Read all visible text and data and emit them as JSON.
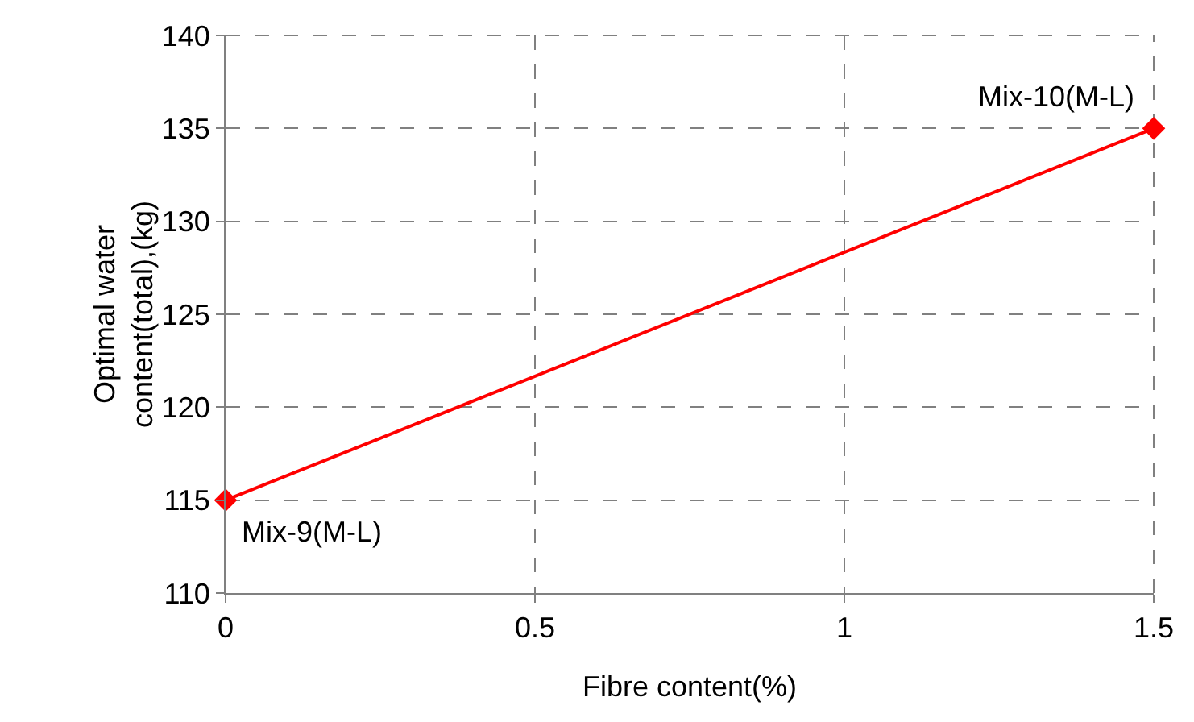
{
  "chart_data": {
    "type": "line",
    "xlabel": "Fibre content(%)",
    "ylabel": "Optimal water\ncontent(total),(kg)",
    "x": [
      0,
      1.5
    ],
    "series": [
      {
        "color": "#ff0000",
        "values": [
          115,
          135
        ]
      }
    ],
    "xlim": [
      0,
      1.5
    ],
    "xticks": [
      0,
      0.5,
      1,
      1.5
    ],
    "ylim": [
      110,
      140
    ],
    "yticks": [
      110,
      115,
      120,
      125,
      130,
      135,
      140
    ],
    "grid": true,
    "marker": "diamond",
    "line_style": "solid",
    "annotations": [
      {
        "text": "Mix-9(M-L)",
        "x": 0,
        "y": 115
      },
      {
        "text": "Mix-10(M-L)",
        "x": 1.5,
        "y": 135
      }
    ]
  }
}
